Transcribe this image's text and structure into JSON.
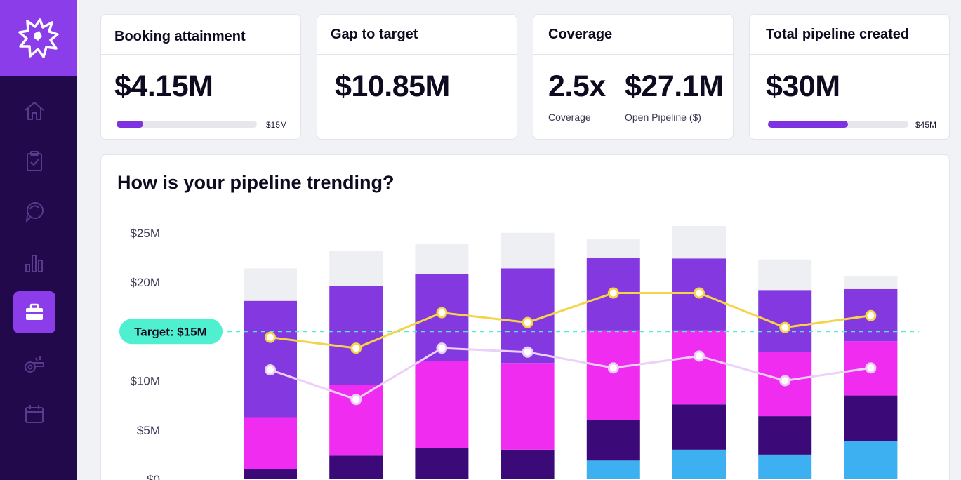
{
  "kpis": {
    "booking": {
      "title": "Booking attainment",
      "value": "$4.15M",
      "max_label": "$15M",
      "progress": 0.19
    },
    "gap": {
      "title": "Gap to target",
      "value": "$10.85M"
    },
    "coverage": {
      "title": "Coverage",
      "ratio": "2.5x",
      "ratio_label": "Coverage",
      "pipeline": "$27.1M",
      "pipeline_label": "Open Pipeline ($)"
    },
    "total": {
      "title": "Total pipeline created",
      "value": "$30M",
      "max_label": "$45M",
      "progress": 0.57
    }
  },
  "sidebar": {
    "items": [
      {
        "icon": "home-icon"
      },
      {
        "icon": "clipboard-check-icon"
      },
      {
        "icon": "chat-bubbles-icon"
      },
      {
        "icon": "bar-chart-icon"
      },
      {
        "icon": "briefcase-icon",
        "active": true
      },
      {
        "icon": "whistle-icon"
      },
      {
        "icon": "calendar-icon"
      }
    ]
  },
  "chart": {
    "title": "How is your pipeline trending?",
    "target_label": "Target: $15M"
  },
  "chart_data": {
    "type": "bar",
    "stacked": true,
    "y_ticks": [
      "$0",
      "$5M",
      "$10M",
      "$15M",
      "$20M",
      "$25M"
    ],
    "ylim": [
      0,
      25
    ],
    "target": 15,
    "colors": {
      "light_blue": "#3cb0f0",
      "dark_purple": "#3b0a78",
      "magenta": "#f02cf0",
      "purple": "#8438e0",
      "gray": "#eeeff3",
      "line_yellow": "#f5d547",
      "line_lilac": "#ebd0f7",
      "target": "#4ff0cf"
    },
    "series": [
      {
        "key": "light_blue",
        "values": [
          0,
          0,
          0,
          0,
          1.9,
          3.0,
          2.5,
          3.9
        ]
      },
      {
        "key": "dark_purple",
        "values": [
          1.0,
          2.4,
          3.2,
          3.0,
          4.1,
          4.6,
          3.9,
          4.6
        ]
      },
      {
        "key": "magenta",
        "values": [
          5.3,
          7.2,
          8.8,
          8.8,
          9.1,
          7.5,
          6.5,
          5.5
        ]
      },
      {
        "key": "purple",
        "values": [
          11.8,
          10.0,
          8.8,
          9.6,
          7.4,
          7.3,
          6.3,
          5.3
        ]
      },
      {
        "key": "gray",
        "values": [
          3.3,
          3.6,
          3.1,
          3.6,
          1.9,
          3.3,
          3.1,
          1.3
        ]
      }
    ],
    "lines": [
      {
        "key": "line_yellow",
        "values": [
          14.4,
          13.3,
          16.9,
          15.9,
          18.9,
          18.9,
          15.4,
          16.6
        ]
      },
      {
        "key": "line_lilac",
        "values": [
          11.1,
          8.1,
          13.3,
          12.9,
          11.3,
          12.5,
          10.0,
          11.3
        ]
      }
    ]
  }
}
